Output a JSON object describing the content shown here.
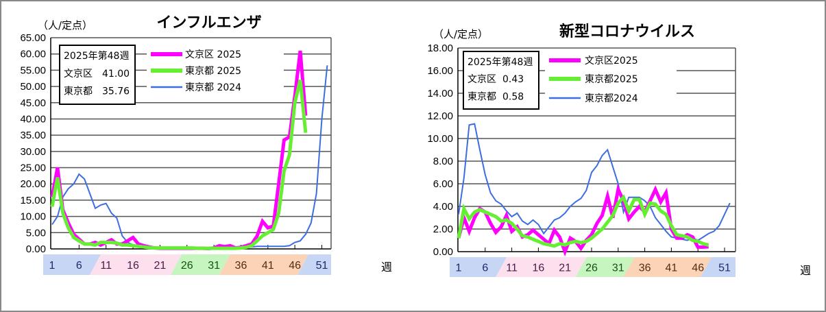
{
  "chart_data": [
    {
      "type": "line",
      "title": "インフルエンザ",
      "ylabel": "（人/定点）",
      "xlabel": "週",
      "ylim": [
        0,
        65
      ],
      "ytick_step": 5,
      "ytick_labels": [
        "0.00",
        "5.00",
        "10.00",
        "15.00",
        "20.00",
        "25.00",
        "30.00",
        "35.00",
        "40.00",
        "45.00",
        "50.00",
        "55.00",
        "60.00",
        "65.00"
      ],
      "xtick_labels": [
        "1",
        "6",
        "11",
        "16",
        "21",
        "26",
        "31",
        "36",
        "41",
        "46",
        "51"
      ],
      "grid": true,
      "legend_placement": "top",
      "info_box": {
        "line1": "2025年第48週",
        "line2_label": "文京区",
        "line2_value": "41.00",
        "line3_label": "東京都",
        "line3_value": "35.76"
      },
      "series": [
        {
          "name": "文京区 2025",
          "color": "#ff00ff",
          "width": 5,
          "values": [
            16,
            25,
            12,
            8,
            4.5,
            3,
            1.5,
            1.5,
            2,
            1.2,
            2,
            2.8,
            1.5,
            1.5,
            2.5,
            3.5,
            1.5,
            1,
            0.6,
            0.3,
            0.2,
            0.2,
            0.2,
            0.2,
            0.2,
            0.2,
            0.2,
            0.2,
            0.2,
            0.1,
            0.3,
            1,
            0.7,
            1,
            0.3,
            0.5,
            1,
            1.5,
            4,
            8.5,
            6.5,
            7,
            20,
            33.5,
            34.5,
            47,
            61,
            41
          ]
        },
        {
          "name": "東京都 2025",
          "color": "#66ee33",
          "width": 5,
          "values": [
            13,
            22,
            11,
            6.5,
            3.5,
            2.5,
            1.5,
            1.5,
            1.2,
            2,
            2,
            2,
            1.8,
            1.2,
            1.2,
            1,
            0.8,
            0.6,
            0.4,
            0.3,
            0.3,
            0.3,
            0.3,
            0.3,
            0.3,
            0.3,
            0.3,
            0.2,
            0.2,
            0.2,
            0.2,
            0.2,
            0.2,
            0.2,
            0.2,
            0.3,
            0.5,
            1,
            2.5,
            4,
            5,
            6,
            11,
            24,
            29,
            45,
            52,
            35.76
          ]
        },
        {
          "name": "東京都 2024",
          "color": "#3d6de0",
          "width": 2,
          "values": [
            7.5,
            10,
            16,
            18.5,
            20,
            23,
            21.5,
            17,
            12.5,
            13.5,
            14,
            11,
            9.5,
            4,
            2,
            1.2,
            0.8,
            0.5,
            0.2,
            0,
            0,
            0,
            0,
            0,
            0,
            0,
            0.2,
            0.5,
            0.5,
            0.2,
            0,
            0,
            0,
            0,
            0.1,
            0.2,
            0.4,
            0.6,
            0.8,
            0.8,
            0.8,
            0.8,
            0.8,
            0.8,
            1,
            2,
            2.5,
            4.5,
            8,
            17,
            40,
            56.5
          ]
        }
      ]
    },
    {
      "type": "line",
      "title": "新型コロナウイルス",
      "ylabel": "（人/定点）",
      "xlabel": "週",
      "ylim": [
        0,
        18
      ],
      "ytick_step": 2,
      "ytick_labels": [
        "0.00",
        "2.00",
        "4.00",
        "6.00",
        "8.00",
        "10.00",
        "12.00",
        "14.00",
        "16.00",
        "18.00"
      ],
      "xtick_labels": [
        "1",
        "6",
        "11",
        "16",
        "21",
        "26",
        "31",
        "36",
        "41",
        "46",
        "51"
      ],
      "grid": true,
      "legend_placement": "top",
      "info_box": {
        "line1": "2025年第48週",
        "line2_label": "文京区",
        "line2_value": "0.43",
        "line3_label": "東京都",
        "line3_value": "0.58"
      },
      "series": [
        {
          "name": "文京区2025",
          "color": "#ff00ff",
          "width": 5,
          "values": [
            1.2,
            3,
            1.8,
            3,
            3.8,
            3.5,
            2.5,
            1.7,
            2.2,
            3.2,
            1.8,
            2.2,
            1.3,
            1.5,
            1.9,
            1.5,
            1.1,
            0.7,
            1.9,
            1.3,
            0,
            1.2,
            0.9,
            0.3,
            1,
            1.5,
            2.5,
            3.2,
            4.9,
            3,
            5.5,
            4.5,
            2.9,
            3.5,
            4,
            3.5,
            4.5,
            5.5,
            4.4,
            5.2,
            2,
            1.2,
            1.2,
            1.5,
            1.3,
            0.4,
            0.4,
            0.43
          ]
        },
        {
          "name": "東京都2025",
          "color": "#66ee33",
          "width": 5,
          "values": [
            1.2,
            3.8,
            2.9,
            3.5,
            3.7,
            3.5,
            3.3,
            3.1,
            2.7,
            2.8,
            2.5,
            2,
            1.4,
            1.3,
            1.1,
            0.9,
            0.7,
            0.6,
            0.5,
            0.7,
            0.6,
            0.8,
            0.9,
            0.8,
            0.9,
            1.2,
            1.6,
            2,
            2.6,
            3.2,
            4.3,
            4.8,
            3.6,
            4.6,
            4.6,
            3.3,
            4.3,
            4.2,
            3.6,
            3.3,
            2.3,
            1.5,
            1.4,
            1.3,
            1.0,
            0.9,
            0.7,
            0.58
          ]
        },
        {
          "name": "東京都2024",
          "color": "#3d6de0",
          "width": 2,
          "values": [
            3.3,
            6.5,
            11.2,
            11.3,
            9,
            6.8,
            5.2,
            4.5,
            4.2,
            3.6,
            3.1,
            3.4,
            2.7,
            2.4,
            2.8,
            2.4,
            1.6,
            2.2,
            2.8,
            3,
            3.4,
            4,
            4.4,
            4.7,
            5.4,
            7,
            7.6,
            8.5,
            9,
            7.5,
            6,
            3.5,
            4.8,
            4.8,
            4.8,
            4.5,
            4,
            3,
            2.4,
            1.8,
            1.3,
            1.2,
            1.1,
            1,
            1.2,
            1,
            1.3,
            1.6,
            1.8,
            2.3,
            3.3,
            4.3
          ]
        }
      ]
    }
  ],
  "season_bands": [
    {
      "from_week": 1,
      "to_week": 8.5,
      "color": "#c8d6f5",
      "text_color": "#1a2a6a"
    },
    {
      "from_week": 8.5,
      "to_week": 23.5,
      "color": "#fde0ee",
      "text_color": "#4a1a4a"
    },
    {
      "from_week": 23.5,
      "to_week": 32.5,
      "color": "#c6f5c0",
      "text_color": "#145214"
    },
    {
      "from_week": 32.5,
      "to_week": 47,
      "color": "#fbd4b8",
      "text_color": "#5a2a10"
    },
    {
      "from_week": 47,
      "to_week": 52.5,
      "color": "#c8d6f5",
      "text_color": "#1a2a6a"
    }
  ]
}
